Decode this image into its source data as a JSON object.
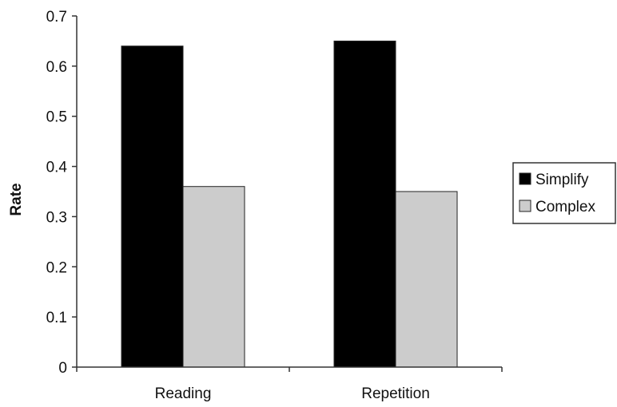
{
  "chart_data": {
    "type": "bar",
    "title": "",
    "xlabel": "",
    "ylabel": "Rate",
    "categories": [
      "Reading",
      "Repetition"
    ],
    "series": [
      {
        "name": "Simplify",
        "values": [
          0.64,
          0.65
        ],
        "color": "#000000"
      },
      {
        "name": "Complex",
        "values": [
          0.36,
          0.35
        ],
        "color": "#cccccc"
      }
    ],
    "ylim": [
      0,
      0.7
    ],
    "yticks": [
      0,
      0.1,
      0.2,
      0.3,
      0.4,
      0.5,
      0.6,
      0.7
    ],
    "ytick_labels": [
      "0",
      "0.1",
      "0.2",
      "0.3",
      "0.4",
      "0.5",
      "0.6",
      "0.7"
    ],
    "grid": false,
    "legend": "right"
  }
}
